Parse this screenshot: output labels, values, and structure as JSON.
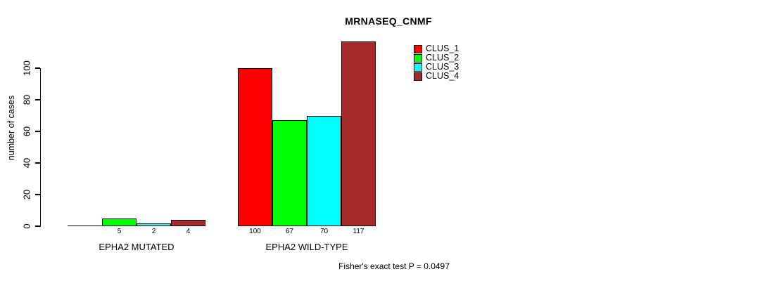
{
  "chart_data": {
    "type": "bar",
    "title": "MRNASEQ_CNMF",
    "ylabel": "number of cases",
    "xlabel": "",
    "ylim": [
      0,
      100
    ],
    "yticks": [
      0,
      20,
      40,
      60,
      80,
      100
    ],
    "grid": false,
    "legend_position": "upper-right-of-plot",
    "categories": [
      "EPHA2 MUTATED",
      "EPHA2 WILD-TYPE"
    ],
    "series": [
      {
        "name": "CLUS_1",
        "color": "#ff0000",
        "values": [
          0,
          100
        ]
      },
      {
        "name": "CLUS_2",
        "color": "#00ff00",
        "values": [
          5,
          67
        ]
      },
      {
        "name": "CLUS_3",
        "color": "#00ffff",
        "values": [
          2,
          70
        ]
      },
      {
        "name": "CLUS_4",
        "color": "#a52a2a",
        "values": [
          4,
          117
        ]
      }
    ],
    "bar_value_labels": [
      [
        "",
        "5",
        "2",
        "4"
      ],
      [
        "100",
        "67",
        "70",
        "117"
      ]
    ],
    "footnote": "Fisher's exact test P = 0.0497"
  },
  "colors": {
    "axis": "#000000",
    "bar_border": "#000000",
    "background": "#ffffff"
  }
}
